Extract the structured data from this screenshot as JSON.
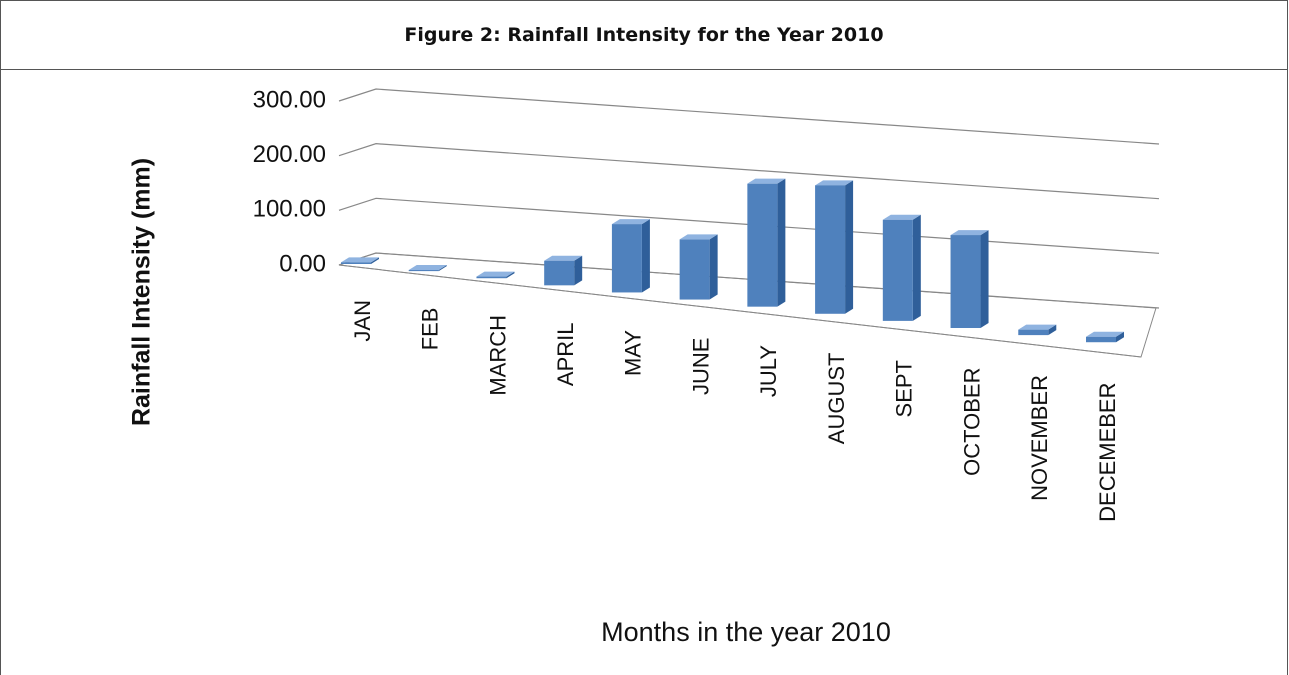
{
  "chart_data": {
    "type": "bar",
    "title": "Figure 2: Rainfall Intensity for the Year 2010",
    "x_label": "Months in the year 2010",
    "y_label": "Rainfall Intensity (mm)",
    "categories": [
      "JAN",
      "FEB",
      "MARCH",
      "APRIL",
      "MAY",
      "JUNE",
      "JULY",
      "AUGUST",
      "SEPT",
      "OCTOBER",
      "NOVEMBER",
      "DECEMEBER"
    ],
    "values": [
      3,
      2,
      3,
      45,
      125,
      110,
      225,
      235,
      185,
      170,
      10,
      10
    ],
    "color": "#4f81bd",
    "ylim": [
      0,
      300
    ],
    "yticks": [
      {
        "value": 0,
        "label": "0.00"
      },
      {
        "value": 100,
        "label": "100.00"
      },
      {
        "value": 200,
        "label": "200.00"
      },
      {
        "value": 300,
        "label": "300.00"
      }
    ],
    "grid": true
  }
}
